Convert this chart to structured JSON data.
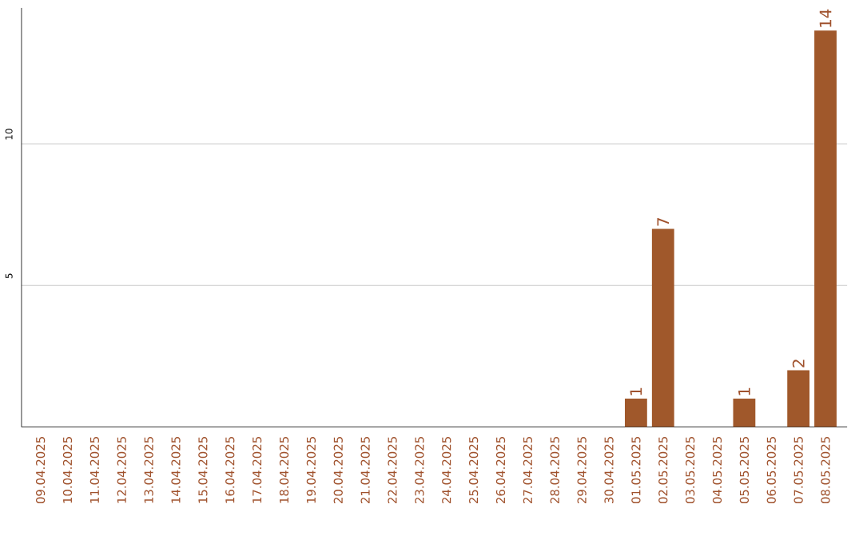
{
  "chart_data": {
    "type": "bar",
    "categories": [
      "09.04.2025",
      "10.04.2025",
      "11.04.2025",
      "12.04.2025",
      "13.04.2025",
      "14.04.2025",
      "15.04.2025",
      "16.04.2025",
      "17.04.2025",
      "18.04.2025",
      "19.04.2025",
      "20.04.2025",
      "21.04.2025",
      "22.04.2025",
      "23.04.2025",
      "24.04.2025",
      "25.04.2025",
      "26.04.2025",
      "27.04.2025",
      "28.04.2025",
      "29.04.2025",
      "30.04.2025",
      "01.05.2025",
      "02.05.2025",
      "03.05.2025",
      "04.05.2025",
      "05.05.2025",
      "06.05.2025",
      "07.05.2025",
      "08.05.2025"
    ],
    "values": [
      0,
      0,
      0,
      0,
      0,
      0,
      0,
      0,
      0,
      0,
      0,
      0,
      0,
      0,
      0,
      0,
      0,
      0,
      0,
      0,
      0,
      0,
      1,
      7,
      0,
      0,
      1,
      0,
      2,
      14
    ],
    "value_labels": [
      null,
      null,
      null,
      null,
      null,
      null,
      null,
      null,
      null,
      null,
      null,
      null,
      null,
      null,
      null,
      null,
      null,
      null,
      null,
      null,
      null,
      null,
      "1",
      "7",
      null,
      null,
      "1",
      null,
      "2",
      "14"
    ],
    "color": "#a0582b",
    "ylim": [
      0,
      14.8
    ],
    "yticks": [
      5,
      10
    ],
    "grid": "y"
  }
}
